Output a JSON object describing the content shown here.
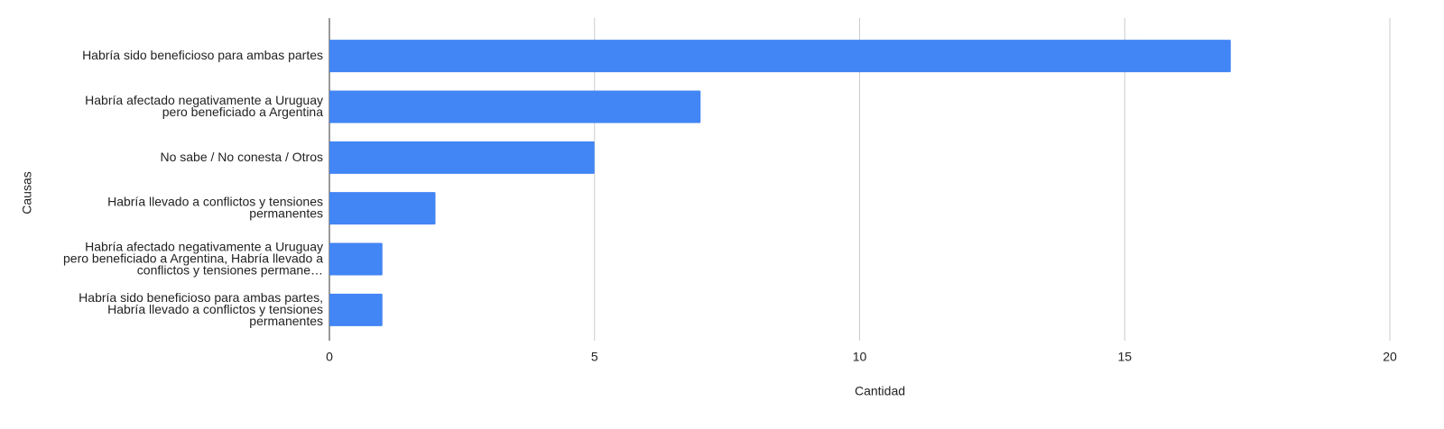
{
  "chart_data": {
    "type": "bar",
    "orientation": "horizontal",
    "x_label": "Cantidad",
    "y_label": "Causas",
    "categories": [
      "Habría sido beneficioso para ambas partes",
      "Habría afectado negativamente a Uruguay pero beneficiado a Argentina",
      "No sabe / No conesta / Otros",
      "Habría llevado a conflictos y tensiones permanentes",
      "Habría afectado negativamente a Uruguay pero beneficiado a Argentina, Habría llevado a conflictos y tensiones permane…",
      "Habría sido beneficioso para ambas partes, Habría llevado a conflictos y tensiones permanentes"
    ],
    "values": [
      17,
      7,
      5,
      2,
      1,
      1
    ],
    "color": "#4285f4",
    "xlim": [
      0,
      20
    ],
    "xticks": [
      0,
      5,
      10,
      15,
      20
    ],
    "grid": true
  }
}
